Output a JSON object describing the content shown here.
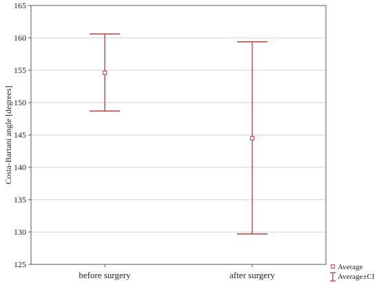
{
  "chart_data": {
    "type": "errorbar",
    "title": "",
    "xlabel": "",
    "ylabel": "Costa-Bartani angle [degrees]",
    "ylim": [
      125,
      165
    ],
    "yticks": [
      125,
      130,
      135,
      140,
      145,
      150,
      155,
      160,
      165
    ],
    "grid": true,
    "categories": [
      "before surgery",
      "after surgery"
    ],
    "series": [
      {
        "name": "Average",
        "values": [
          154.6,
          144.5
        ],
        "ci_lower": [
          148.7,
          129.7
        ],
        "ci_upper": [
          160.6,
          159.4
        ]
      }
    ],
    "legend": {
      "placement": "bottom-right",
      "entries": [
        "Average",
        "Average±CI"
      ]
    },
    "colors": {
      "marker": "#c0504d",
      "errorbar": "#b03030",
      "grid": "#d0d0d0",
      "axis": "#555555"
    }
  }
}
